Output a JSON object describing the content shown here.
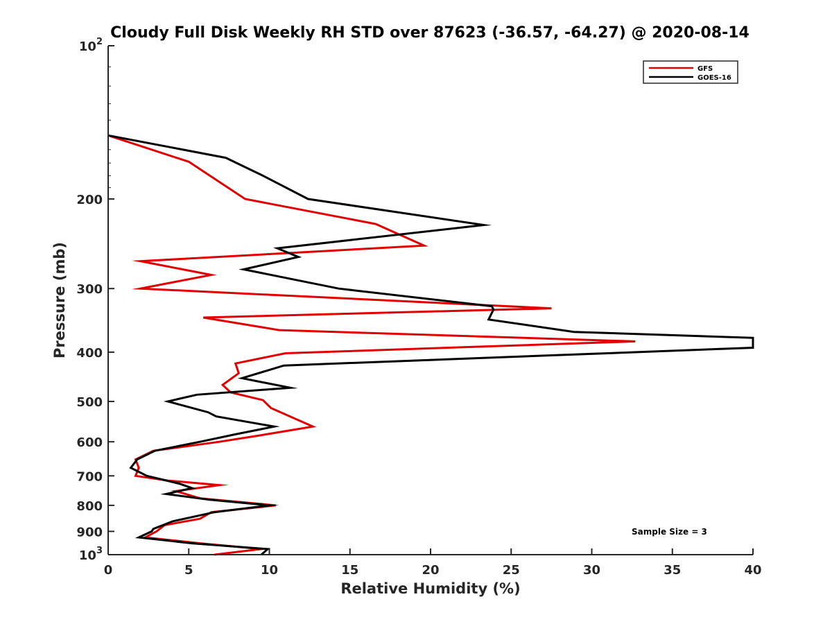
{
  "chart_data": {
    "type": "line",
    "title": "Cloudy Full Disk Weekly RH STD over 87623 (-36.57, -64.27) @ 2020-08-14",
    "xlabel": "Relative Humidity (%)",
    "ylabel": "Pressure (mb)",
    "xlim": [
      0,
      40
    ],
    "ylim": [
      100,
      1000
    ],
    "y_scale": "log",
    "y_reversed": true,
    "grid": false,
    "legend_position": "top-right",
    "x_ticks": [
      "0",
      "5",
      "10",
      "15",
      "20",
      "25",
      "30",
      "35",
      "40"
    ],
    "y_ticks": [
      {
        "value": 100,
        "label": "10",
        "exp": "2"
      },
      {
        "value": 200,
        "label": "200",
        "exp": ""
      },
      {
        "value": 300,
        "label": "300",
        "exp": ""
      },
      {
        "value": 400,
        "label": "400",
        "exp": ""
      },
      {
        "value": 500,
        "label": "500",
        "exp": ""
      },
      {
        "value": 600,
        "label": "600",
        "exp": ""
      },
      {
        "value": 700,
        "label": "700",
        "exp": ""
      },
      {
        "value": 800,
        "label": "800",
        "exp": ""
      },
      {
        "value": 900,
        "label": "900",
        "exp": ""
      },
      {
        "value": 1000,
        "label": "10",
        "exp": "3"
      }
    ],
    "annotation": "Sample Size = 3",
    "series": [
      {
        "name": "GFS",
        "color": "#e00000",
        "points": [
          [
            0.0,
            150
          ],
          [
            5.0,
            169
          ],
          [
            8.5,
            200
          ],
          [
            16.6,
            224
          ],
          [
            19.6,
            247
          ],
          [
            2.0,
            265
          ],
          [
            6.4,
            282
          ],
          [
            2.0,
            300
          ],
          [
            27.5,
            328
          ],
          [
            5.9,
            342
          ],
          [
            10.6,
            362
          ],
          [
            32.7,
            381
          ],
          [
            11.0,
            402
          ],
          [
            7.9,
            421
          ],
          [
            8.1,
            440
          ],
          [
            7.1,
            464
          ],
          [
            7.6,
            480
          ],
          [
            9.6,
            497
          ],
          [
            10.1,
            515
          ],
          [
            12.7,
            560
          ],
          [
            9.4,
            583
          ],
          [
            6.9,
            600
          ],
          [
            2.8,
            625
          ],
          [
            1.7,
            650
          ],
          [
            1.9,
            675
          ],
          [
            1.7,
            700
          ],
          [
            3.7,
            715
          ],
          [
            6.9,
            730
          ],
          [
            4.2,
            750
          ],
          [
            5.7,
            775
          ],
          [
            10.4,
            800
          ],
          [
            6.4,
            825
          ],
          [
            5.7,
            850
          ],
          [
            3.5,
            875
          ],
          [
            3.0,
            900
          ],
          [
            2.3,
            925
          ],
          [
            5.7,
            950
          ],
          [
            9.5,
            975
          ],
          [
            6.6,
            1000
          ]
        ]
      },
      {
        "name": "GOES-16",
        "color": "#000000",
        "points": [
          [
            0.0,
            150
          ],
          [
            7.3,
            166
          ],
          [
            9.6,
            180
          ],
          [
            12.4,
            200
          ],
          [
            23.3,
            225
          ],
          [
            10.5,
            250
          ],
          [
            11.8,
            260
          ],
          [
            8.4,
            275
          ],
          [
            14.3,
            300
          ],
          [
            23.8,
            325
          ],
          [
            23.9,
            330
          ],
          [
            23.6,
            345
          ],
          [
            28.9,
            365
          ],
          [
            40.0,
            375
          ],
          [
            40.0,
            392
          ],
          [
            10.9,
            425
          ],
          [
            8.3,
            450
          ],
          [
            11.3,
            470
          ],
          [
            5.5,
            485
          ],
          [
            3.7,
            500
          ],
          [
            6.2,
            525
          ],
          [
            6.7,
            535
          ],
          [
            10.3,
            560
          ],
          [
            7.9,
            580
          ],
          [
            5.7,
            600
          ],
          [
            2.9,
            625
          ],
          [
            1.8,
            650
          ],
          [
            1.4,
            675
          ],
          [
            2.4,
            700
          ],
          [
            4.4,
            725
          ],
          [
            5.2,
            740
          ],
          [
            3.6,
            760
          ],
          [
            6.3,
            780
          ],
          [
            10.0,
            800
          ],
          [
            6.6,
            825
          ],
          [
            4.0,
            860
          ],
          [
            2.8,
            890
          ],
          [
            2.7,
            900
          ],
          [
            1.9,
            925
          ],
          [
            5.2,
            950
          ],
          [
            9.9,
            975
          ],
          [
            9.5,
            1000
          ]
        ]
      }
    ]
  }
}
